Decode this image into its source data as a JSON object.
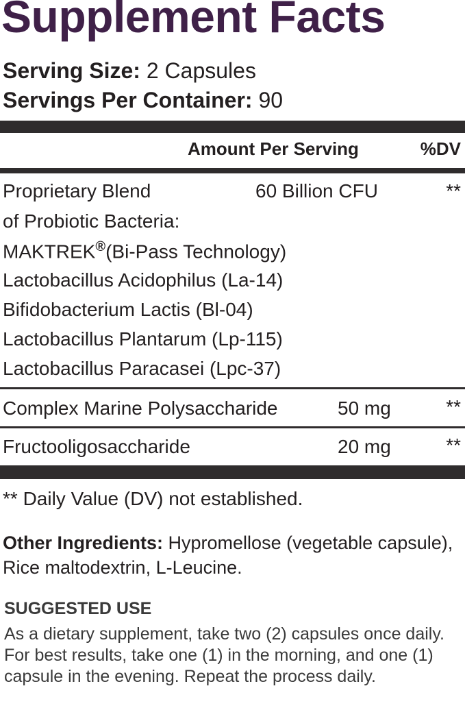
{
  "title": "Supplement Facts",
  "serving": {
    "size_label": "Serving Size:",
    "size_value": "2 Capsules",
    "per_container_label": "Servings Per Container:",
    "per_container_value": "90"
  },
  "table": {
    "header_amount": "Amount Per Serving",
    "header_dv": "%DV",
    "blend": {
      "name_line1": "Proprietary Blend",
      "name_line2": "of Probiotic Bacteria:",
      "amount": "60 Billion CFU",
      "dv": "**",
      "maktrek_name": "MAKTREK",
      "maktrek_mark": "®",
      "maktrek_desc": "(Bi-Pass Technology)",
      "strains": [
        "Lactobacillus Acidophilus (La-14)",
        "Bifidobacterium Lactis (Bl-04)",
        "Lactobacillus Plantarum (Lp-115)",
        "Lactobacillus Paracasei (Lpc-37)"
      ]
    },
    "rows": [
      {
        "name": "Complex Marine Polysaccharide",
        "amount": "50 mg",
        "dv": "**"
      },
      {
        "name": "Fructooligosaccharide",
        "amount": "20 mg",
        "dv": "**"
      }
    ]
  },
  "footnote": "** Daily Value (DV) not established.",
  "other_ingredients": {
    "label": "Other Ingredients:",
    "text": " Hypromellose (vegetable capsule), Rice maltodextrin, L-Leucine."
  },
  "suggested_use": {
    "title": "SUGGESTED USE",
    "text": "As a dietary supplement, take two (2) capsules once daily. For best results, take one (1) in the morning, and one (1) capsule in the evening. Repeat the process daily."
  }
}
